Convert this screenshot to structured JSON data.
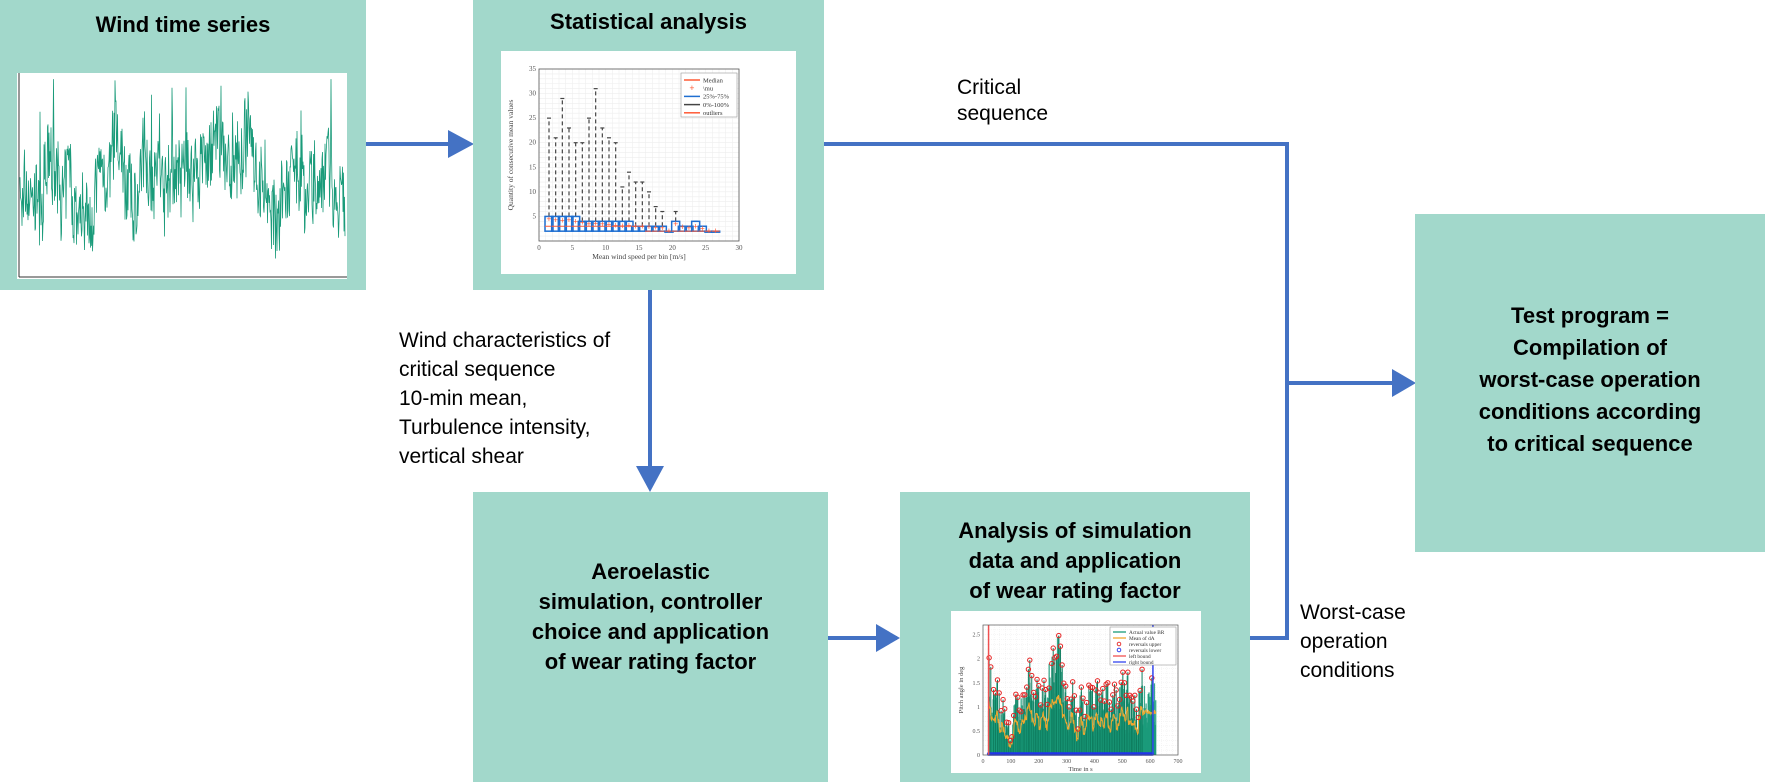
{
  "colors": {
    "box": "#A2D8CB",
    "arrow": "#4472C4",
    "series_green": "#1A9B7A",
    "median": "#FF5A36",
    "quartile": "#1F6FD1",
    "whisker": "#444444",
    "mean": "#F0A830"
  },
  "boxes": {
    "wind": {
      "title": "Wind time series"
    },
    "stats": {
      "title": "Statistical analysis"
    },
    "aero": {
      "title_lines": [
        "Aeroelastic",
        "simulation, controller",
        "choice and application",
        "of  wear rating factor"
      ]
    },
    "analysis": {
      "title_lines": [
        "Analysis of simulation",
        "data and application",
        "of wear rating factor"
      ]
    },
    "test": {
      "title_lines": [
        "Test program =",
        "Compilation of",
        "worst-case operation",
        "conditions according",
        "to critical sequence"
      ]
    }
  },
  "labels": {
    "critical": [
      "Critical",
      "sequence"
    ],
    "wind_chars": [
      "Wind characteristics of",
      "critical sequence",
      "10-min mean,",
      "Turbulence intensity,",
      "vertical shear"
    ],
    "worst_case": [
      "Worst-case",
      "operation",
      "conditions"
    ]
  },
  "chart_data": [
    {
      "type": "boxplot",
      "xlabel": "Mean wind speed per bin [m/s]",
      "ylabel": "Quantity of consecutive mean values",
      "xlim": [
        0,
        30
      ],
      "ylim": [
        0,
        35
      ],
      "xticks": [
        0,
        5,
        10,
        15,
        20,
        25,
        30
      ],
      "yticks": [
        5,
        10,
        15,
        20,
        25,
        30,
        35
      ],
      "legend": [
        "Median",
        "\\mu",
        "25%-75%",
        "0%-100%",
        "outliers"
      ],
      "legend_position": "top-right",
      "bins": [
        1.5,
        2.5,
        3.5,
        4.5,
        5.5,
        6.5,
        7.5,
        8.5,
        9.5,
        10.5,
        11.5,
        12.5,
        13.5,
        14.5,
        15.5,
        16.5,
        17.5,
        18.5,
        19.5,
        20.5,
        21.5,
        22.5,
        23.5,
        24.5,
        25.5,
        26.5
      ],
      "max": [
        25,
        21,
        29,
        23,
        20,
        20,
        25,
        31,
        23,
        21,
        20,
        11,
        14,
        12,
        12,
        10,
        7,
        6,
        2,
        6,
        3,
        3,
        4,
        3,
        2,
        2
      ],
      "q3": [
        5,
        5,
        5,
        5,
        5,
        4,
        4,
        4,
        4,
        4,
        4,
        4,
        4,
        3,
        3,
        3,
        3,
        3,
        2,
        4,
        3,
        3,
        4,
        3,
        2,
        2
      ],
      "median": [
        3,
        3,
        3,
        3,
        3,
        3,
        3,
        3,
        3,
        3,
        3,
        3,
        3,
        3,
        3,
        2,
        2,
        2,
        2,
        2,
        2,
        2,
        2,
        2,
        2,
        2
      ],
      "q1": [
        2,
        2,
        2,
        2,
        2,
        2,
        2,
        2,
        2,
        2,
        2,
        2,
        2,
        2,
        2,
        2,
        2,
        2,
        2,
        2,
        2,
        2,
        2,
        2,
        2,
        2
      ],
      "mean": [
        4.5,
        4.3,
        4.2,
        4.3,
        4,
        3.8,
        3.5,
        3.6,
        3.5,
        3.4,
        3.2,
        3.1,
        3.2,
        3,
        3,
        2.8,
        2.7,
        2.6,
        2,
        3.5,
        2.8,
        2.6,
        2.9,
        2.5,
        2,
        2
      ]
    },
    {
      "type": "line",
      "xlabel": "Time in s",
      "ylabel": "Pitch angle in deg",
      "xlim": [
        0,
        700
      ],
      "ylim": [
        0,
        2.7
      ],
      "xticks": [
        0,
        100,
        200,
        300,
        400,
        500,
        600,
        700
      ],
      "yticks": [
        0,
        0.5,
        1,
        1.5,
        2,
        2.5
      ],
      "legend": [
        "Actual value BR",
        "Mean of dA",
        "reversals upper",
        "reversals lower",
        "left bound",
        "right bound"
      ],
      "legend_position": "top-right",
      "left_bound": 20,
      "right_bound": 610,
      "reversals_upper": [
        [
          22,
          2.02
        ],
        [
          28,
          1.83
        ],
        [
          38,
          1.36
        ],
        [
          45,
          1.29
        ],
        [
          52,
          1.56
        ],
        [
          58,
          1.29
        ],
        [
          65,
          0.92
        ],
        [
          72,
          1.15
        ],
        [
          78,
          0.96
        ],
        [
          85,
          0.68
        ],
        [
          92,
          0.67
        ],
        [
          98,
          0.3
        ],
        [
          104,
          0.38
        ],
        [
          110,
          0.82
        ],
        [
          118,
          1.26
        ],
        [
          125,
          1.2
        ],
        [
          130,
          0.93
        ],
        [
          136,
          0.9
        ],
        [
          144,
          1.25
        ],
        [
          150,
          1.25
        ],
        [
          157,
          1.41
        ],
        [
          163,
          1.78
        ],
        [
          168,
          1.97
        ],
        [
          175,
          1.65
        ],
        [
          182,
          1.3
        ],
        [
          188,
          1.21
        ],
        [
          194,
          1.57
        ],
        [
          200,
          1.44
        ],
        [
          207,
          1.04
        ],
        [
          213,
          1.39
        ],
        [
          219,
          1.55
        ],
        [
          225,
          1.36
        ],
        [
          231,
          1.05
        ],
        [
          237,
          1.39
        ],
        [
          247,
          1.9
        ],
        [
          252,
          2.22
        ],
        [
          258,
          2.02
        ],
        [
          264,
          2.05
        ],
        [
          272,
          2.48
        ],
        [
          278,
          2.26
        ],
        [
          284,
          1.87
        ],
        [
          290,
          1.49
        ],
        [
          297,
          1.43
        ],
        [
          303,
          1.17
        ],
        [
          309,
          1.0
        ],
        [
          316,
          1.16
        ],
        [
          322,
          1.52
        ],
        [
          328,
          1.23
        ],
        [
          335,
          0.93
        ],
        [
          341,
          0.54
        ],
        [
          347,
          0.93
        ],
        [
          353,
          1.41
        ],
        [
          359,
          1.18
        ],
        [
          366,
          0.8
        ],
        [
          372,
          1.09
        ],
        [
          380,
          1.45
        ],
        [
          386,
          1.41
        ],
        [
          393,
          1.4
        ],
        [
          398,
          1.0
        ],
        [
          405,
          1.35
        ],
        [
          411,
          1.54
        ],
        [
          417,
          1.29
        ],
        [
          423,
          1.14
        ],
        [
          430,
          1.38
        ],
        [
          436,
          1.12
        ],
        [
          442,
          1.47
        ],
        [
          448,
          1.5
        ],
        [
          454,
          1.1
        ],
        [
          460,
          0.95
        ],
        [
          466,
          1.25
        ],
        [
          472,
          1.47
        ],
        [
          478,
          1.35
        ],
        [
          484,
          1.02
        ],
        [
          490,
          1.15
        ],
        [
          496,
          1.51
        ],
        [
          502,
          1.72
        ],
        [
          508,
          1.5
        ],
        [
          514,
          1.24
        ],
        [
          520,
          1.72
        ],
        [
          527,
          1.24
        ],
        [
          533,
          1.2
        ],
        [
          538,
          1.12
        ],
        [
          545,
          1.24
        ],
        [
          551,
          0.95
        ],
        [
          558,
          0.78
        ],
        [
          564,
          1.34
        ],
        [
          571,
          1.78
        ],
        [
          606,
          1.6
        ]
      ]
    }
  ]
}
